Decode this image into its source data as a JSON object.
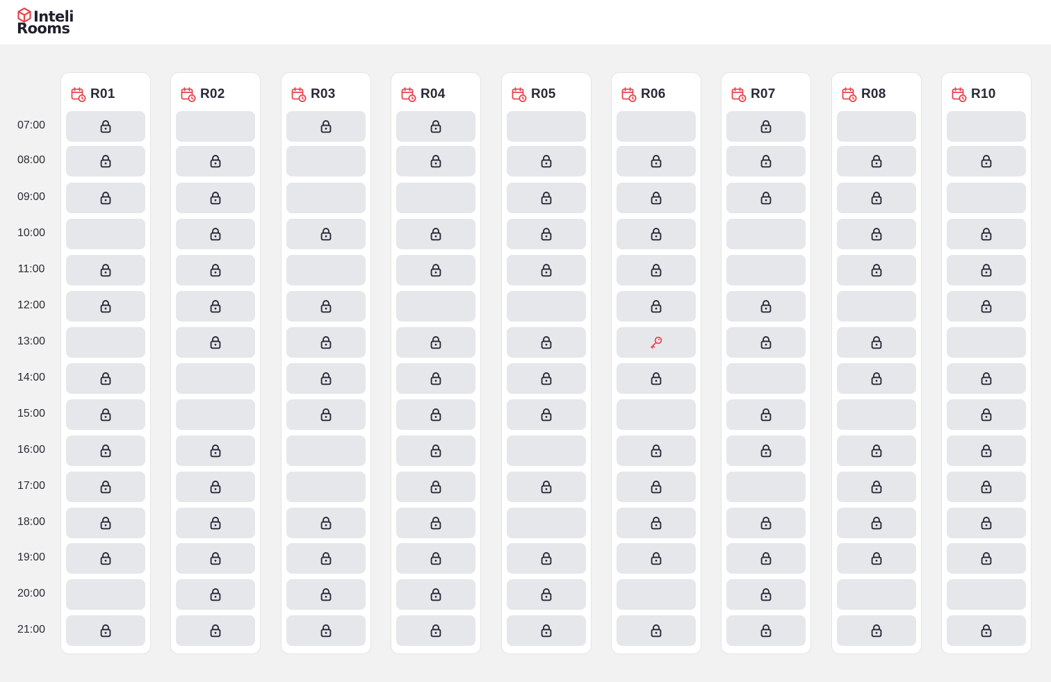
{
  "app": {
    "logo_line1": "Inteli",
    "logo_line2": "Rooms"
  },
  "colors": {
    "accent": "#e8434a",
    "slot": "#e6e7eb",
    "lock": "#2a2a38"
  },
  "times": [
    "07:00",
    "08:00",
    "09:00",
    "10:00",
    "11:00",
    "12:00",
    "13:00",
    "14:00",
    "15:00",
    "16:00",
    "17:00",
    "18:00",
    "19:00",
    "20:00",
    "21:00"
  ],
  "rooms": [
    {
      "name": "R01",
      "icon": "calendar-clock-icon",
      "slots": [
        "locked",
        "locked",
        "locked",
        "free",
        "locked",
        "locked",
        "free",
        "locked",
        "locked",
        "locked",
        "locked",
        "locked",
        "locked",
        "free",
        "locked"
      ]
    },
    {
      "name": "R02",
      "icon": "calendar-clock-icon",
      "slots": [
        "free",
        "locked",
        "locked",
        "locked",
        "locked",
        "locked",
        "locked",
        "free",
        "free",
        "locked",
        "locked",
        "locked",
        "locked",
        "locked",
        "locked"
      ]
    },
    {
      "name": "R03",
      "icon": "calendar-clock-icon",
      "slots": [
        "locked",
        "free",
        "free",
        "locked",
        "free",
        "locked",
        "locked",
        "locked",
        "locked",
        "free",
        "free",
        "locked",
        "locked",
        "locked",
        "locked"
      ]
    },
    {
      "name": "R04",
      "icon": "calendar-clock-icon",
      "slots": [
        "locked",
        "locked",
        "free",
        "locked",
        "locked",
        "free",
        "locked",
        "locked",
        "locked",
        "locked",
        "locked",
        "locked",
        "locked",
        "locked",
        "locked"
      ]
    },
    {
      "name": "R05",
      "icon": "calendar-clock-icon",
      "slots": [
        "free",
        "locked",
        "locked",
        "locked",
        "locked",
        "free",
        "locked",
        "locked",
        "locked",
        "free",
        "locked",
        "free",
        "locked",
        "locked",
        "locked"
      ]
    },
    {
      "name": "R06",
      "icon": "calendar-clock-icon",
      "slots": [
        "free",
        "locked",
        "locked",
        "locked",
        "locked",
        "locked",
        "key",
        "locked",
        "free",
        "locked",
        "locked",
        "locked",
        "locked",
        "free",
        "locked"
      ]
    },
    {
      "name": "R07",
      "icon": "calendar-clock-icon",
      "slots": [
        "locked",
        "locked",
        "locked",
        "free",
        "free",
        "locked",
        "locked",
        "free",
        "locked",
        "locked",
        "free",
        "locked",
        "locked",
        "locked",
        "locked"
      ]
    },
    {
      "name": "R08",
      "icon": "calendar-clock-icon",
      "slots": [
        "free",
        "locked",
        "locked",
        "locked",
        "locked",
        "free",
        "locked",
        "locked",
        "free",
        "locked",
        "locked",
        "locked",
        "locked",
        "free",
        "locked"
      ]
    },
    {
      "name": "R10",
      "icon": "calendar-clock-icon",
      "slots": [
        "free",
        "locked",
        "free",
        "locked",
        "locked",
        "locked",
        "free",
        "locked",
        "locked",
        "locked",
        "locked",
        "locked",
        "locked",
        "free",
        "locked"
      ]
    }
  ]
}
